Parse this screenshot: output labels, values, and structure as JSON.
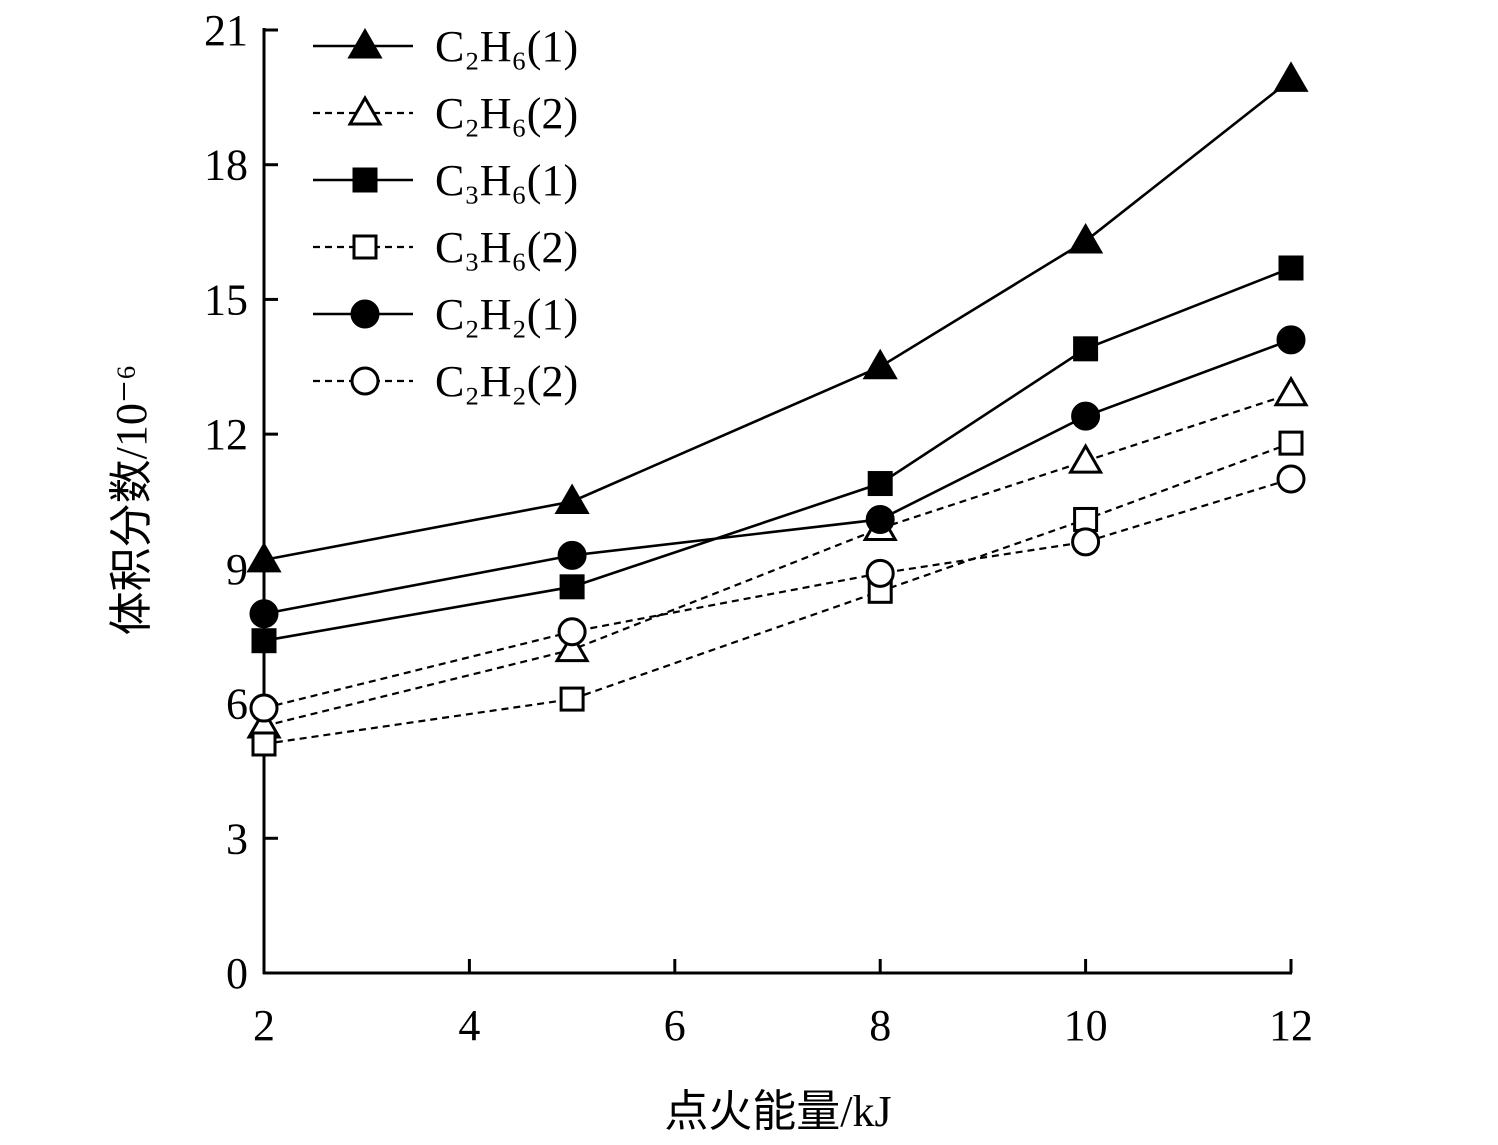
{
  "chart_data": {
    "type": "line",
    "title": "",
    "xlabel": "点火能量/kJ",
    "ylabel": "体积分数/10⁻⁶",
    "x": [
      2,
      5,
      8,
      10,
      12
    ],
    "xlim": [
      2,
      12
    ],
    "ylim": [
      0,
      21
    ],
    "xticks": [
      "2",
      "4",
      "6",
      "8",
      "10",
      "12"
    ],
    "yticks": [
      "0",
      "3",
      "6",
      "9",
      "12",
      "15",
      "18",
      "21"
    ],
    "grid": false,
    "legend_position": "top-left",
    "series": [
      {
        "name": "C₂H₆(1)",
        "marker": "triangle",
        "filled": true,
        "dashed": false,
        "values": [
          9.2,
          10.5,
          13.5,
          16.3,
          19.9
        ]
      },
      {
        "name": "C₂H₆(2)",
        "marker": "triangle",
        "filled": false,
        "dashed": true,
        "values": [
          5.5,
          7.2,
          9.9,
          11.4,
          12.9
        ]
      },
      {
        "name": "C₃H₆(1)",
        "marker": "square",
        "filled": true,
        "dashed": false,
        "values": [
          7.4,
          8.6,
          10.9,
          13.9,
          15.7
        ]
      },
      {
        "name": "C₃H₆(2)",
        "marker": "square",
        "filled": false,
        "dashed": true,
        "values": [
          5.1,
          6.1,
          8.5,
          10.1,
          11.8
        ]
      },
      {
        "name": "C₂H₂(1)",
        "marker": "circle",
        "filled": true,
        "dashed": false,
        "values": [
          8.0,
          9.3,
          10.1,
          12.4,
          14.1
        ]
      },
      {
        "name": "C₂H₂(2)",
        "marker": "circle",
        "filled": false,
        "dashed": true,
        "values": [
          5.9,
          7.6,
          8.9,
          9.6,
          11.0
        ]
      }
    ]
  }
}
